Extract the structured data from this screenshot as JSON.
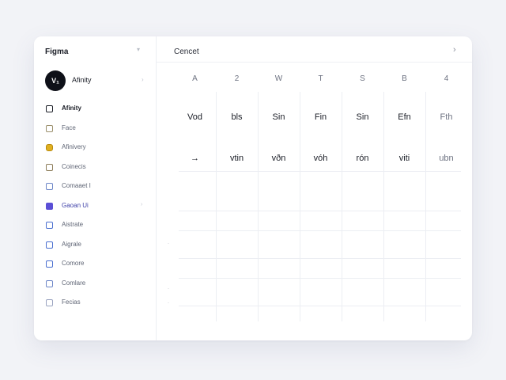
{
  "sidebar": {
    "title": "Figma",
    "collapse_icon": "chevron-down-icon",
    "workspace": {
      "avatar_text": "V₁",
      "name": "Afinity"
    },
    "items": [
      {
        "label": "Afinity",
        "icon": "layout-icon",
        "color": "#1a1d26",
        "active": true
      },
      {
        "label": "Face",
        "icon": "image-icon",
        "color": "#9a8f6b"
      },
      {
        "label": "Afinivery",
        "icon": "folder-icon",
        "color": "#e0b020"
      },
      {
        "label": "Coinecis",
        "icon": "chat-icon",
        "color": "#8d7d5a"
      },
      {
        "label": "Comaaet I",
        "icon": "calendar-icon",
        "color": "#6d86c8"
      },
      {
        "label": "Gaoan Ui",
        "icon": "component-icon",
        "color": "#5b4fd6",
        "highlight": true
      },
      {
        "label": "Aistrate",
        "icon": "pen-icon",
        "color": "#4a6fd0"
      },
      {
        "label": "Aigrale",
        "icon": "globe-icon",
        "color": "#4a6fd0"
      },
      {
        "label": "Comore",
        "icon": "refresh-icon",
        "color": "#4a6fd0"
      },
      {
        "label": "Comlare",
        "icon": "lock-icon",
        "color": "#6d86c8"
      },
      {
        "label": "Fecias",
        "icon": "grid-icon",
        "color": "#9aa3c0"
      }
    ]
  },
  "main": {
    "title": "Cencet",
    "next_icon": "chevron-right-icon",
    "next_symbol": "›",
    "columns": [
      "A",
      "2",
      "W",
      "T",
      "S",
      "B",
      "4"
    ],
    "rows": [
      [
        "Vod",
        "bls",
        "Sin",
        "Fin",
        "Sin",
        "Efn",
        "Fth"
      ],
      [
        "→",
        "vtin",
        "vðn",
        "vóh",
        "rón",
        "viti",
        "ubn"
      ]
    ],
    "row_marks": [
      "·",
      "·",
      "·"
    ]
  }
}
